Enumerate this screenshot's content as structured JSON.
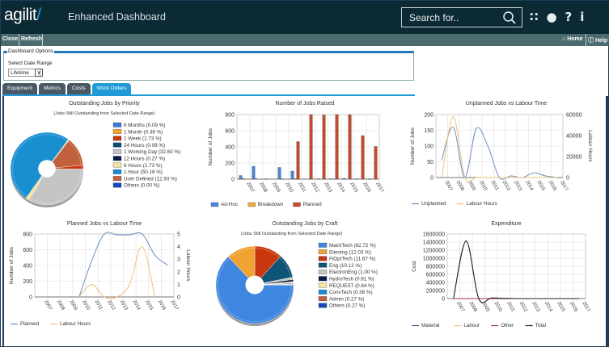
{
  "header": {
    "logo": "agilit",
    "app_title": "Enhanced Dashboard",
    "search_placeholder": "Search for..",
    "icons": [
      "rss-icon",
      "globe-icon",
      "help-icon",
      "info-icon"
    ]
  },
  "toolbar": {
    "close": "Close",
    "refresh": "Refresh",
    "home": "Home",
    "help": "Help"
  },
  "options": {
    "legend": "Dashboard Options",
    "label": "Select Date Range",
    "date_range": "Lifetime"
  },
  "tabs": [
    {
      "label": "Equipment"
    },
    {
      "label": "Metrics"
    },
    {
      "label": "Costs"
    },
    {
      "label": "Work Orders",
      "active": true
    }
  ],
  "chart_data": [
    {
      "id": "priority",
      "type": "pie",
      "title": "Outstanding Jobs by Priority",
      "subtitle": "(Jobs Still Outstanding from Selected Date Range)",
      "slices": [
        {
          "label": "6 Months (0.09 %)",
          "value": 0.09,
          "color": "#3a7bd5"
        },
        {
          "label": "1 Month (0.36 %)",
          "value": 0.36,
          "color": "#f5a623"
        },
        {
          "label": "1 Week (1.73 %)",
          "value": 1.73,
          "color": "#c8370e"
        },
        {
          "label": "24 Hours (0.09 %)",
          "value": 0.09,
          "color": "#0e4a6e"
        },
        {
          "label": "1 Working Day (32.60 %)",
          "value": 32.6,
          "color": "#c4c4c4"
        },
        {
          "label": "12 Hours (0.27 %)",
          "value": 0.27,
          "color": "#0b1a44"
        },
        {
          "label": "6 Hours (1.73 %)",
          "value": 1.73,
          "color": "#f7e39a"
        },
        {
          "label": "1 Hour (50.18 %)",
          "value": 50.18,
          "color": "#1a8fd0"
        },
        {
          "label": "User Defined (12.93 %)",
          "value": 12.93,
          "color": "#c0603c"
        },
        {
          "label": "Others (0.00 %)",
          "value": 0,
          "color": "#1747b8"
        }
      ]
    },
    {
      "id": "raised",
      "type": "bar",
      "title": "Number of Jobs Raised",
      "ylabel": "Number of Jobs",
      "ylim": [
        0,
        800
      ],
      "yticks": [
        0,
        200,
        400,
        600,
        800
      ],
      "categories": [
        "2007",
        "2008",
        "2009",
        "2010",
        "2011",
        "2012",
        "2013",
        "2014",
        "2015",
        "2016",
        "2017"
      ],
      "series": [
        {
          "name": "Ad-Hoc",
          "color": "#4a86d8",
          "values": [
            45,
            160,
            5,
            145,
            100,
            0,
            5,
            5,
            10,
            5,
            5
          ]
        },
        {
          "name": "Breakdown",
          "color": "#f3a73a",
          "values": [
            10,
            5,
            0,
            5,
            5,
            0,
            0,
            0,
            0,
            0,
            0
          ]
        },
        {
          "name": "Planned",
          "color": "#c94a2a",
          "values": [
            0,
            0,
            0,
            0,
            465,
            800,
            795,
            800,
            800,
            540,
            405
          ]
        }
      ]
    },
    {
      "id": "unplanned",
      "type": "line",
      "title": "Unplanned Jobs vs Labour Time",
      "ylabel": "Number of Jobs",
      "y2label": "Labour Hours",
      "ylim": [
        0,
        200
      ],
      "yticks": [
        0,
        50,
        100,
        150,
        200
      ],
      "y2lim": [
        0,
        60000
      ],
      "y2ticks": [
        0,
        20000,
        40000,
        60000
      ],
      "categories": [
        "2007",
        "2008",
        "2009",
        "2010",
        "2011",
        "2012",
        "2013",
        "2014",
        "2015",
        "2016",
        "2017"
      ],
      "series": [
        {
          "name": "Unplanned",
          "color": "#6b8fc4",
          "axis": 1,
          "values": [
            55,
            160,
            0,
            155,
            100,
            0,
            5,
            0,
            15,
            5,
            0
          ]
        },
        {
          "name": "Labour Hours",
          "color": "#f0c27a",
          "axis": 2,
          "values": [
            0,
            58000,
            0,
            0,
            0,
            0,
            0,
            0,
            0,
            0,
            0
          ]
        }
      ]
    },
    {
      "id": "planned",
      "type": "line",
      "title": "Planned Jobs vs Labour Time",
      "ylabel": "Number of Jobs",
      "y2label": "Labour Hours",
      "ylim": [
        0,
        800
      ],
      "yticks": [
        0,
        200,
        400,
        600,
        800
      ],
      "y2lim": [
        0,
        5
      ],
      "y2ticks": [
        0,
        1,
        2,
        3,
        4,
        5
      ],
      "categories": [
        "2007",
        "2008",
        "2009",
        "2010",
        "2011",
        "2012",
        "2013",
        "2014",
        "2015",
        "2016",
        "2017"
      ],
      "series": [
        {
          "name": "Planned",
          "color": "#6b8fc4",
          "axis": 1,
          "values": [
            null,
            null,
            null,
            0,
            460,
            800,
            790,
            790,
            800,
            530,
            405
          ]
        },
        {
          "name": "Labour Hours",
          "color": "#f0c27a",
          "axis": 2,
          "values": [
            null,
            null,
            null,
            0,
            1,
            0,
            0,
            1,
            4,
            0,
            null
          ]
        }
      ]
    },
    {
      "id": "craft",
      "type": "pie",
      "title": "Outstanding Jobs by Craft",
      "subtitle": "(Jobs Still Outstanding from Selected Date Range)",
      "slices": [
        {
          "label": "MaintTech (62.72 %)",
          "value": 62.72,
          "color": "#3f86e0"
        },
        {
          "label": "Eleceng (12.03 %)",
          "value": 12.03,
          "color": "#f0a232"
        },
        {
          "label": "FiOptTech (11.67 %)",
          "value": 11.67,
          "color": "#c8370e"
        },
        {
          "label": "Eng (10.12 %)",
          "value": 10.12,
          "color": "#0e5478"
        },
        {
          "label": "ElectronEng (1.00 %)",
          "value": 1.0,
          "color": "#c4c4c4"
        },
        {
          "label": "HydroTech (0.91 %)",
          "value": 0.91,
          "color": "#0b1a44"
        },
        {
          "label": "REQUEST (0.64 %)",
          "value": 0.64,
          "color": "#f7e39a"
        },
        {
          "label": "ConvTech (0.36 %)",
          "value": 0.36,
          "color": "#1a8fd0"
        },
        {
          "label": "Admin (0.27 %)",
          "value": 0.27,
          "color": "#c0603c"
        },
        {
          "label": "Others (0.27 %)",
          "value": 0.27,
          "color": "#1747b8"
        }
      ]
    },
    {
      "id": "expenditure",
      "type": "line",
      "title": "Expenditure",
      "ylabel": "Cost",
      "ylim": [
        0,
        1600000
      ],
      "yticks": [
        0,
        200000,
        400000,
        600000,
        800000,
        1000000,
        1200000,
        1400000,
        1600000
      ],
      "categories": [
        "2007",
        "2008",
        "2009",
        "2010",
        "2011",
        "2012",
        "2013",
        "2014",
        "2015",
        "2016",
        "2017"
      ],
      "series": [
        {
          "name": "Material",
          "color": "#3b5e9a",
          "axis": 1,
          "values": [
            0,
            1420000,
            0,
            15000,
            8000,
            0,
            0,
            0,
            0,
            0,
            0
          ]
        },
        {
          "name": "Labour",
          "color": "#f0c27a",
          "axis": 1,
          "values": [
            0,
            0,
            0,
            0,
            0,
            0,
            0,
            0,
            0,
            0,
            0
          ]
        },
        {
          "name": "Other",
          "color": "#a0304a",
          "axis": 1,
          "values": [
            0,
            0,
            0,
            0,
            0,
            0,
            0,
            0,
            0,
            0,
            0
          ]
        },
        {
          "name": "Total",
          "color": "#222222",
          "axis": 1,
          "values": [
            0,
            1430000,
            0,
            15000,
            8000,
            0,
            0,
            0,
            0,
            0,
            0
          ]
        }
      ]
    }
  ]
}
